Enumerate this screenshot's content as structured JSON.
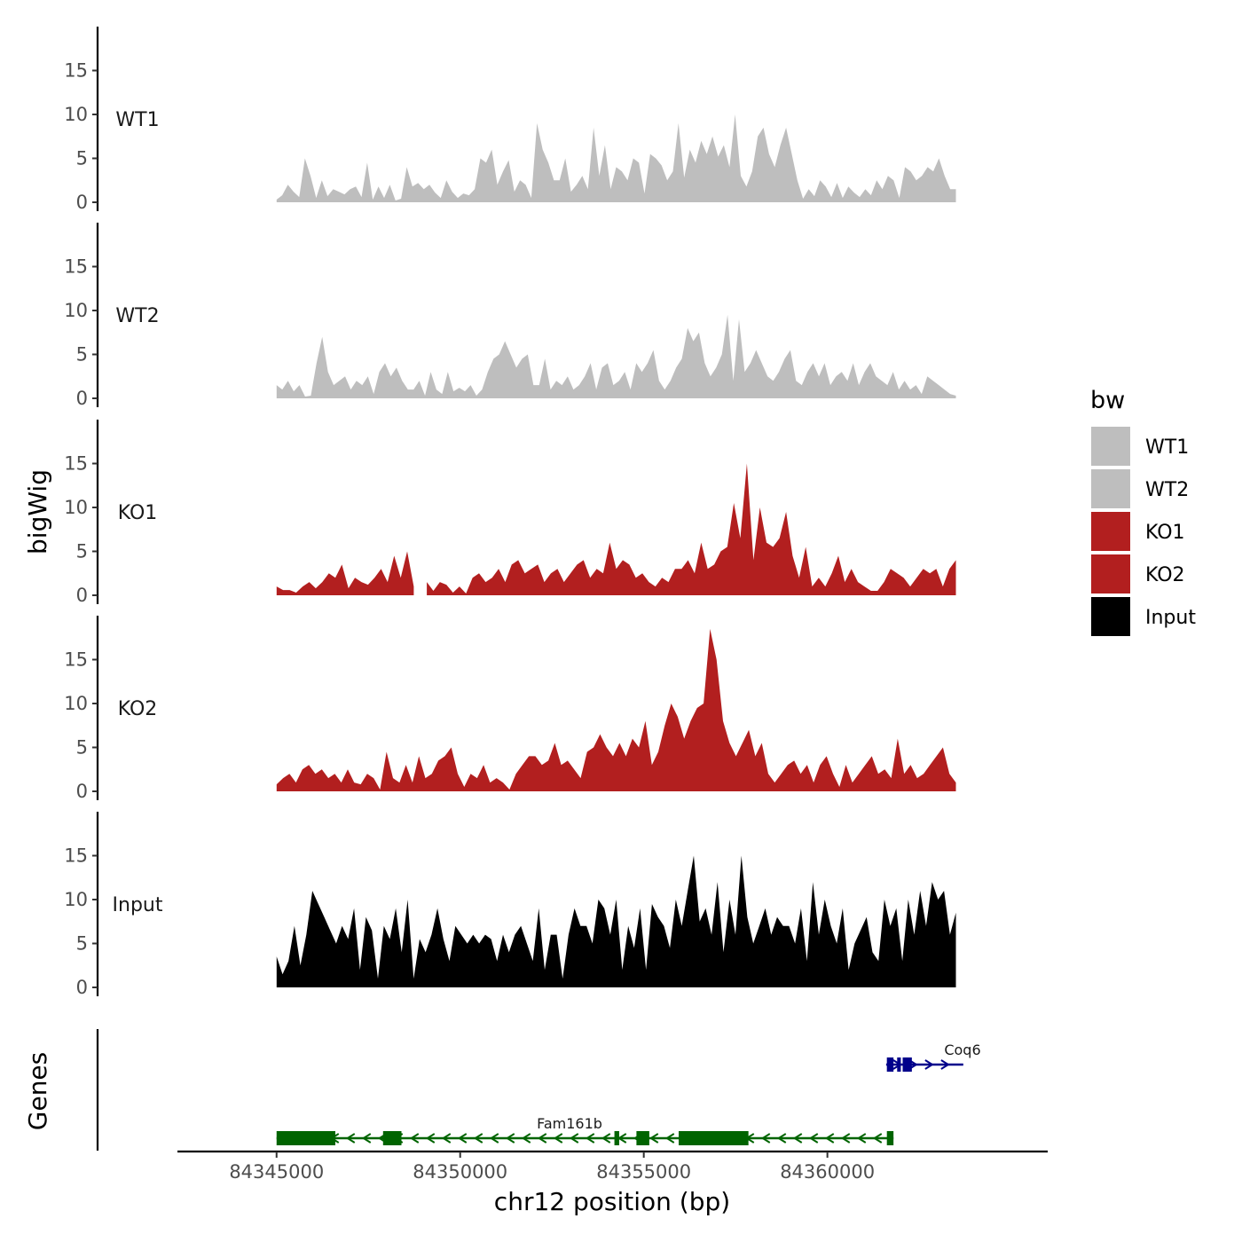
{
  "chart_data": {
    "type": "area",
    "xlabel": "chr12 position (bp)",
    "ylabel": "bigWig",
    "genes_label": "Genes",
    "chromosome": "chr12",
    "xlim": [
      84342300,
      84366000
    ],
    "data_range": [
      84345000,
      84363500
    ],
    "ylim": [
      0,
      20
    ],
    "yticks": [
      0,
      5,
      10,
      15
    ],
    "xticks": [
      84345000,
      84350000,
      84355000,
      84360000
    ],
    "xtick_labels": [
      "84345000",
      "84350000",
      "84355000",
      "84360000"
    ],
    "legend_title": "bw",
    "legend_placement": "right",
    "series": [
      {
        "name": "WT1",
        "color": "#bebebe",
        "values": [
          0.3,
          0.8,
          2,
          1.2,
          0.6,
          5,
          3,
          0.5,
          2.5,
          0.7,
          1.5,
          1.2,
          0.9,
          1.5,
          1.8,
          0.6,
          4.5,
          0.3,
          1.8,
          0.5,
          2,
          0.2,
          0.4,
          4,
          1.8,
          2.2,
          1.5,
          2,
          1.1,
          0.5,
          2.5,
          1.2,
          0.5,
          1,
          0.8,
          1.5,
          5,
          4.5,
          6,
          2,
          3.5,
          4.8,
          1.2,
          2.5,
          2,
          0.5,
          9,
          6,
          4.5,
          2.5,
          2.5,
          5,
          1.2,
          2,
          3,
          1.5,
          8.5,
          3,
          6.5,
          1.5,
          4,
          3.5,
          2.5,
          5,
          4.5,
          1,
          5.5,
          5,
          4.2,
          2.5,
          3.5,
          9,
          2.8,
          6,
          4.5,
          7,
          5.5,
          7.5,
          5.2,
          6.5,
          4,
          10,
          3,
          1.8,
          3.5,
          7.5,
          8.5,
          5.5,
          4,
          6.5,
          8.5,
          5.5,
          2.5,
          0.4,
          1.5,
          0.7,
          2.5,
          1.8,
          0.6,
          2.2,
          0.5,
          1.8,
          1.1,
          0.6,
          1.5,
          0.8,
          2.5,
          1.5,
          3,
          2.5,
          0.5,
          4,
          3.5,
          2.5,
          3,
          4,
          3.5,
          5,
          3,
          1.5,
          1.5
        ]
      },
      {
        "name": "WT2",
        "color": "#bebebe",
        "values": [
          1.5,
          1,
          2,
          0.8,
          1.5,
          0.2,
          0.3,
          4,
          7,
          3,
          1.5,
          2,
          2.5,
          1,
          2,
          1.5,
          2.5,
          0.5,
          3,
          4,
          2.5,
          3.5,
          2,
          1,
          1,
          2,
          0.3,
          3,
          1,
          0.5,
          3,
          0.8,
          1.2,
          0.8,
          1.5,
          0.3,
          1,
          3,
          4.5,
          5,
          6.5,
          5,
          3.5,
          4.5,
          5,
          1.5,
          1.5,
          4.5,
          1,
          2,
          1.5,
          2.5,
          1,
          1.5,
          2.5,
          4,
          1,
          3.5,
          4,
          1.5,
          2,
          3,
          1,
          4,
          3,
          4,
          5.5,
          2,
          1,
          2,
          3.5,
          4.5,
          8,
          6.5,
          7.5,
          4,
          2.5,
          3.5,
          5,
          9.5,
          2,
          9,
          3,
          4,
          5.5,
          4,
          2.5,
          2,
          3,
          4.5,
          5.5,
          2,
          1.5,
          3,
          4,
          2.5,
          4,
          1.5,
          2.5,
          3,
          2,
          4,
          1.5,
          3,
          4,
          2.5,
          2,
          1.5,
          3,
          1,
          2,
          1,
          1.5,
          0.5,
          2.5,
          2,
          1.5,
          1,
          0.5,
          0.3
        ]
      },
      {
        "name": "KO1",
        "color": "#b21f1f",
        "values": [
          1,
          0.6,
          0.6,
          0.3,
          1,
          1.5,
          0.8,
          1.5,
          2.5,
          2,
          3.5,
          0.8,
          2,
          1.5,
          1.2,
          2,
          3,
          1.5,
          4.5,
          2,
          5,
          1,
          null,
          1.5,
          0.5,
          1.5,
          1.2,
          0.3,
          1,
          0.2,
          2,
          2.5,
          1.5,
          2,
          3,
          1.5,
          3.5,
          4,
          2.5,
          3,
          3.5,
          1.5,
          2.5,
          3,
          1.5,
          2.5,
          3.5,
          4,
          2,
          3,
          2.5,
          6,
          3,
          4,
          3.5,
          2,
          2.5,
          1.5,
          1,
          2,
          1.5,
          3,
          3,
          4,
          2.5,
          6,
          3,
          3.5,
          5,
          5.5,
          10.5,
          6.5,
          15,
          4,
          10,
          6,
          5.5,
          6.5,
          9.5,
          4.5,
          2,
          5.5,
          1,
          2,
          1,
          2.5,
          4.5,
          1.5,
          3,
          1.5,
          1,
          0.5,
          0.5,
          1.5,
          3,
          2.5,
          2,
          1,
          2,
          3,
          2.5,
          3,
          1,
          3,
          4
        ]
      },
      {
        "name": "KO2",
        "color": "#b21f1f",
        "values": [
          0.8,
          1.5,
          2,
          1,
          2.5,
          3,
          2,
          2.5,
          1.5,
          2,
          1,
          2.5,
          1,
          0.8,
          2,
          1.5,
          0.2,
          4.5,
          1.5,
          1,
          3,
          1,
          4,
          1.5,
          2,
          3.5,
          4,
          5,
          2,
          0.5,
          2,
          1.5,
          3,
          1,
          1.5,
          1,
          0.2,
          2,
          3,
          4,
          4,
          3,
          3.5,
          5.5,
          3,
          3.5,
          2.5,
          1.5,
          4.5,
          5,
          6.5,
          5,
          4,
          5.5,
          4,
          6,
          5,
          8,
          3,
          4.5,
          7.5,
          10,
          8.5,
          6,
          8,
          9.5,
          10,
          18.5,
          15,
          8,
          5.5,
          4,
          5.5,
          7,
          4,
          5.5,
          2,
          1,
          2,
          3,
          3.5,
          2,
          3,
          1,
          3,
          4,
          2,
          0.5,
          3,
          1,
          2,
          3,
          4,
          2,
          2.5,
          1.5,
          6,
          2,
          3,
          1.5,
          2,
          3,
          4,
          5,
          2,
          1
        ]
      },
      {
        "name": "Input",
        "color": "#000000",
        "values": [
          3.5,
          1.5,
          3,
          7,
          2.5,
          6,
          11,
          9.5,
          8,
          6.5,
          5,
          7,
          5.5,
          9,
          2,
          8,
          6.5,
          1,
          7,
          5.5,
          9,
          4,
          10,
          1,
          5.5,
          4,
          6,
          9,
          5.5,
          3,
          7,
          6,
          5,
          6,
          5,
          6,
          5.5,
          3,
          6,
          4,
          6,
          7,
          5,
          3,
          9,
          2,
          6,
          6,
          1,
          6,
          9,
          7,
          7,
          5,
          10,
          9,
          6,
          10,
          2,
          7,
          4.5,
          9,
          2,
          9.5,
          8,
          7,
          4.5,
          10,
          7,
          11,
          15,
          7.5,
          9,
          6,
          12,
          4,
          10,
          6,
          15,
          8,
          5,
          7,
          9,
          6,
          8,
          7,
          7,
          5,
          9,
          3,
          12,
          6,
          10,
          7,
          5,
          9,
          2,
          5,
          6.5,
          8,
          4,
          3,
          10,
          7,
          9,
          3,
          10,
          6,
          11,
          7,
          12,
          10,
          11,
          6,
          8.5
        ]
      }
    ],
    "genes": [
      {
        "name": "Fam161b",
        "strand": "-",
        "color": "#006400",
        "start": 84345000,
        "end": 84361800,
        "exons": [
          [
            84345000,
            84346600
          ],
          [
            84347900,
            84348400
          ],
          [
            84354200,
            84354330
          ],
          [
            84354800,
            84355150
          ],
          [
            84355950,
            84357850
          ],
          [
            84361620,
            84361800
          ]
        ]
      },
      {
        "name": "Coq6",
        "strand": "+",
        "color": "#00008b",
        "start": 84361600,
        "end": 84363700,
        "exons": [
          [
            84361620,
            84361800
          ],
          [
            84361900,
            84362000
          ],
          [
            84362050,
            84362300
          ]
        ]
      }
    ]
  }
}
